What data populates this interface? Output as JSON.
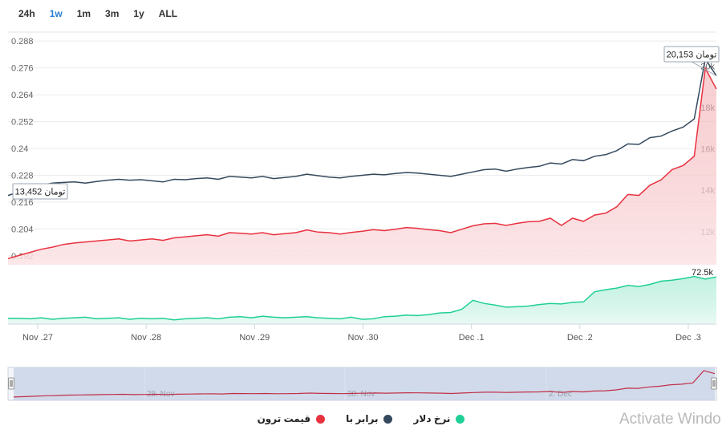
{
  "range_selector": {
    "buttons": [
      "24h",
      "1w",
      "1m",
      "3m",
      "1y",
      "ALL"
    ],
    "active": "1w"
  },
  "legend": {
    "items": [
      {
        "label": "نرخ دلار",
        "color": "#1fcf96"
      },
      {
        "label": "برابر با",
        "color": "#34495e"
      },
      {
        "label": "قیمت ترون",
        "color": "#e8313f"
      }
    ]
  },
  "watermark": "Activate Windo",
  "chart_data": {
    "type": "line",
    "x_ticks": [
      "Nov .27",
      "Nov .28",
      "Nov .29",
      "Nov .30",
      "Dec .1",
      "Dec .2",
      "Dec .3"
    ],
    "left_axis": {
      "ticks": [
        "0.288",
        "0.276",
        "0.264",
        "0.252",
        "0.24",
        "0.228",
        "0.216",
        "0.204",
        "0.192"
      ],
      "range": [
        0.188,
        0.292
      ]
    },
    "right_axis": {
      "ticks": [
        "20k",
        "18k",
        "16k",
        "14k",
        "12k"
      ],
      "range": [
        10400,
        21650
      ]
    },
    "series": [
      {
        "name": "برابر با",
        "axis": "left",
        "color": "#34495e",
        "values": [
          0.219,
          0.2205,
          0.222,
          0.2235,
          0.2245,
          0.2248,
          0.225,
          0.2245,
          0.2252,
          0.2258,
          0.2262,
          0.2258,
          0.226,
          0.2255,
          0.225,
          0.2262,
          0.226,
          0.2265,
          0.2268,
          0.2262,
          0.2275,
          0.2272,
          0.2268,
          0.2275,
          0.2265,
          0.227,
          0.2275,
          0.2285,
          0.2278,
          0.2272,
          0.2268,
          0.2275,
          0.228,
          0.2285,
          0.2282,
          0.2288,
          0.2292,
          0.229,
          0.2285,
          0.228,
          0.2275,
          0.2285,
          0.2295,
          0.2305,
          0.2308,
          0.2298,
          0.2308,
          0.2315,
          0.232,
          0.2335,
          0.233,
          0.235,
          0.2345,
          0.2365,
          0.2372,
          0.239,
          0.242,
          0.2418,
          0.2448,
          0.2455,
          0.2478,
          0.2495,
          0.2532,
          0.28,
          0.2725
        ]
      },
      {
        "name": "قیمت ترون",
        "axis": "right",
        "color": "#e8313f",
        "values": [
          10700,
          10850,
          11000,
          11150,
          11250,
          11380,
          11450,
          11500,
          11550,
          11600,
          11650,
          11550,
          11600,
          11650,
          11580,
          11700,
          11750,
          11800,
          11850,
          11780,
          11950,
          11920,
          11880,
          11950,
          11850,
          11900,
          11950,
          12080,
          11980,
          11950,
          11880,
          11960,
          12020,
          12100,
          12050,
          12120,
          12200,
          12160,
          12100,
          12050,
          11950,
          12120,
          12280,
          12380,
          12400,
          12300,
          12400,
          12480,
          12500,
          12650,
          12300,
          12650,
          12500,
          12800,
          12900,
          13200,
          13800,
          13750,
          14250,
          14500,
          15000,
          15200,
          15650,
          19900,
          18900
        ]
      },
      {
        "name": "نرخ دلار",
        "axis": "usd",
        "color": "#1fcf96",
        "values": [
          0.08,
          0.08,
          0.07,
          0.09,
          0.06,
          0.08,
          0.09,
          0.1,
          0.07,
          0.08,
          0.09,
          0.06,
          0.08,
          0.07,
          0.08,
          0.05,
          0.07,
          0.08,
          0.09,
          0.07,
          0.1,
          0.11,
          0.09,
          0.12,
          0.1,
          0.09,
          0.1,
          0.11,
          0.09,
          0.08,
          0.07,
          0.1,
          0.06,
          0.07,
          0.11,
          0.12,
          0.14,
          0.13,
          0.15,
          0.18,
          0.19,
          0.25,
          0.42,
          0.36,
          0.33,
          0.29,
          0.3,
          0.31,
          0.34,
          0.36,
          0.35,
          0.38,
          0.39,
          0.58,
          0.62,
          0.65,
          0.7,
          0.68,
          0.72,
          0.78,
          0.8,
          0.83,
          0.87,
          0.82,
          0.86
        ]
      }
    ],
    "usd_last_label": "72.5k",
    "annotations": [
      {
        "series": "برابر با",
        "at": "start",
        "text": "تومان 13,452"
      },
      {
        "series": "برابر با",
        "at": "end",
        "text": "تومان 20,153"
      }
    ],
    "navigator": {
      "labels": [
        "28. Nov",
        "30. Nov",
        "2. Dec"
      ]
    }
  }
}
